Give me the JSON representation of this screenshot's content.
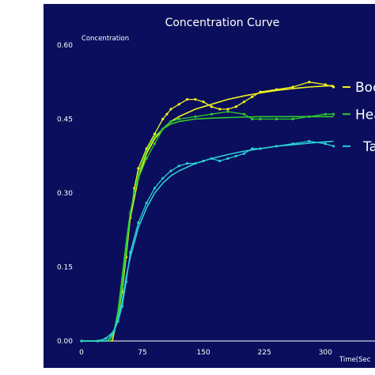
{
  "colors": {
    "background": "#0a0e5c",
    "axis": "#ffffff",
    "series_yellow": "#f2f21e",
    "series_green": "#2ecc2e",
    "series_cyan": "#2ad0d6"
  },
  "chart_data": {
    "type": "line",
    "title": "Concentration Curve",
    "ylabel": "Concentration",
    "xlabel": "Time(Sec",
    "xlim": [
      0,
      325
    ],
    "ylim": [
      0,
      0.6
    ],
    "x_ticks": [
      "0",
      "75",
      "150",
      "225",
      "300"
    ],
    "y_ticks": [
      "0.00",
      "0.15",
      "0.30",
      "0.45",
      "0.60"
    ],
    "grid": false,
    "legend_position": "right",
    "series": [
      {
        "name": "Bod",
        "color": "#f2f21e",
        "style": "measured",
        "x": [
          0,
          20,
          30,
          40,
          45,
          50,
          55,
          60,
          65,
          70,
          80,
          90,
          100,
          105,
          110,
          120,
          130,
          140,
          150,
          160,
          170,
          180,
          190,
          200,
          210,
          220,
          240,
          260,
          280,
          300,
          310
        ],
        "y": [
          0,
          0,
          0.005,
          0.02,
          0.05,
          0.1,
          0.17,
          0.25,
          0.31,
          0.35,
          0.39,
          0.42,
          0.45,
          0.46,
          0.47,
          0.48,
          0.49,
          0.49,
          0.485,
          0.475,
          0.47,
          0.47,
          0.475,
          0.485,
          0.495,
          0.505,
          0.51,
          0.515,
          0.525,
          0.52,
          0.515
        ]
      },
      {
        "name": "",
        "color": "#f2f21e",
        "style": "fitted",
        "x": [
          0,
          38,
          45,
          50,
          55,
          60,
          70,
          80,
          90,
          100,
          110,
          120,
          140,
          160,
          180,
          200,
          220,
          240,
          260,
          280,
          300,
          310
        ],
        "y": [
          0,
          0,
          0.06,
          0.12,
          0.19,
          0.25,
          0.33,
          0.38,
          0.41,
          0.43,
          0.445,
          0.455,
          0.47,
          0.48,
          0.49,
          0.497,
          0.503,
          0.508,
          0.512,
          0.515,
          0.517,
          0.518
        ]
      },
      {
        "name": "Hea",
        "color": "#2ecc2e",
        "style": "measured",
        "x": [
          0,
          20,
          30,
          40,
          45,
          50,
          55,
          60,
          65,
          70,
          80,
          90,
          100,
          110,
          120,
          140,
          160,
          180,
          200,
          210,
          220,
          240,
          260,
          280,
          300,
          310
        ],
        "y": [
          0,
          0,
          0.005,
          0.02,
          0.05,
          0.11,
          0.18,
          0.26,
          0.3,
          0.33,
          0.37,
          0.4,
          0.43,
          0.445,
          0.45,
          0.455,
          0.46,
          0.465,
          0.46,
          0.45,
          0.45,
          0.45,
          0.45,
          0.455,
          0.46,
          0.46
        ]
      },
      {
        "name": "",
        "color": "#2ecc2e",
        "style": "fitted",
        "x": [
          0,
          35,
          40,
          45,
          50,
          55,
          60,
          70,
          80,
          90,
          100,
          110,
          120,
          140,
          160,
          180,
          200,
          220,
          240,
          260,
          280,
          300,
          310
        ],
        "y": [
          0,
          0,
          0.02,
          0.06,
          0.13,
          0.2,
          0.26,
          0.34,
          0.385,
          0.415,
          0.43,
          0.44,
          0.445,
          0.45,
          0.452,
          0.453,
          0.454,
          0.455,
          0.455,
          0.455,
          0.455,
          0.455,
          0.455
        ]
      },
      {
        "name": "Ta",
        "color": "#2ad0d6",
        "style": "measured",
        "x": [
          0,
          20,
          30,
          40,
          45,
          50,
          55,
          60,
          70,
          80,
          90,
          100,
          110,
          120,
          130,
          140,
          150,
          160,
          170,
          180,
          190,
          200,
          210,
          220,
          240,
          260,
          280,
          300,
          310
        ],
        "y": [
          0,
          0,
          0.005,
          0.02,
          0.04,
          0.07,
          0.12,
          0.18,
          0.24,
          0.28,
          0.31,
          0.33,
          0.345,
          0.355,
          0.36,
          0.36,
          0.365,
          0.37,
          0.365,
          0.37,
          0.375,
          0.38,
          0.39,
          0.39,
          0.395,
          0.4,
          0.405,
          0.4,
          0.395
        ]
      },
      {
        "name": "",
        "color": "#2ad0d6",
        "style": "fitted",
        "x": [
          0,
          32,
          40,
          45,
          50,
          55,
          60,
          70,
          80,
          90,
          100,
          110,
          120,
          140,
          160,
          180,
          200,
          220,
          240,
          260,
          280,
          300,
          310
        ],
        "y": [
          0,
          0,
          0.02,
          0.045,
          0.08,
          0.13,
          0.17,
          0.23,
          0.27,
          0.3,
          0.32,
          0.335,
          0.345,
          0.36,
          0.37,
          0.378,
          0.385,
          0.39,
          0.395,
          0.398,
          0.401,
          0.404,
          0.405
        ]
      }
    ]
  }
}
